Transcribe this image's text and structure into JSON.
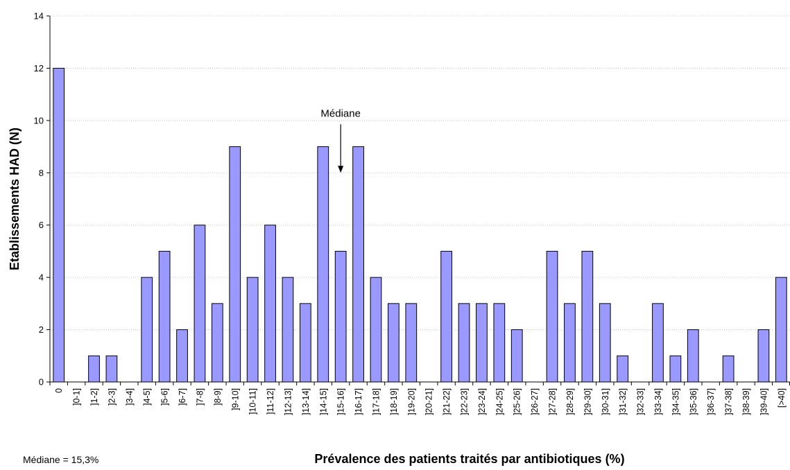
{
  "chart_data": {
    "type": "bar",
    "title": "",
    "xlabel": "Prévalence des patients traités par antibiotiques (%)",
    "ylabel": "Etablissements HAD (N)",
    "ylim": [
      0,
      14
    ],
    "yticks": [
      0,
      2,
      4,
      6,
      8,
      10,
      12,
      14
    ],
    "grid": true,
    "legend": "none",
    "bar_color": "#9999ff",
    "categories": [
      "0",
      "]0-1]",
      "]1-2]",
      "]2-3]",
      "]3-4]",
      "]4-5]",
      "]5-6]",
      "]6-7]",
      "]7-8]",
      "]8-9]",
      "]9-10]",
      "]10-11]",
      "]11-12]",
      "]12-13]",
      "]13-14]",
      "]14-15]",
      "]15-16]",
      "]16-17]",
      "]17-18]",
      "]18-19]",
      "]19-20]",
      "]20-21]",
      "]21-22]",
      "]22-23]",
      "]23-24]",
      "]24-25]",
      "]25-26]",
      "]26-27]",
      "]27-28]",
      "]28-29]",
      "]29-30]",
      "]30-31]",
      "]31-32]",
      "]32-33]",
      "]33-34]",
      "]34-35]",
      "]35-36]",
      "]36-37]",
      "]37-38]",
      "]38-39]",
      "]39-40]",
      "[>40]"
    ],
    "values": [
      12,
      0,
      1,
      1,
      0,
      4,
      5,
      2,
      6,
      3,
      9,
      4,
      6,
      4,
      3,
      9,
      5,
      9,
      4,
      3,
      3,
      0,
      5,
      3,
      3,
      3,
      2,
      0,
      5,
      3,
      5,
      3,
      1,
      0,
      3,
      1,
      2,
      0,
      1,
      0,
      2,
      4
    ],
    "annotations": [
      {
        "text": "Médiane",
        "category": "]15-16]",
        "value": 8
      }
    ]
  },
  "footnote": "Médiane = 15,3%"
}
